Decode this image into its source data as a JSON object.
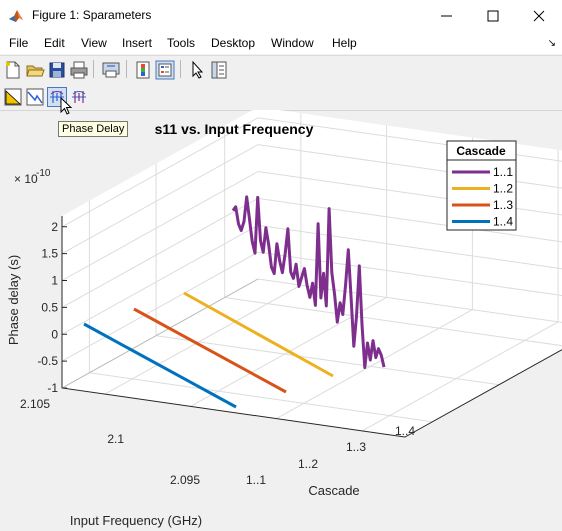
{
  "window": {
    "title": "Figure 1: Sparameters",
    "controls": [
      "minimize",
      "maximize",
      "close"
    ]
  },
  "menu": [
    "File",
    "Edit",
    "View",
    "Insert",
    "Tools",
    "Desktop",
    "Window",
    "Help"
  ],
  "toolbar": {
    "row1_icons": [
      "new-figure-icon",
      "open-file-icon",
      "save-icon",
      "print-icon",
      "print-preview-icon",
      "colorbar-icon",
      "legend-icon",
      "pointer-icon",
      "property-editor-icon"
    ],
    "row2_icons": [
      "magnitude-icon",
      "phase-icon",
      "phase-delay-icon",
      "group-delay-icon"
    ],
    "tooltip": "Phase Delay"
  },
  "chart_data": {
    "type": "line",
    "title": "s11 vs. Input Frequency",
    "xlabel": "Cascade",
    "ylabel": "Input Frequency (GHz)",
    "zlabel": "Phase delay (s)",
    "exponent": "10",
    "exponent_base": "× 10",
    "exponent_power": "-10",
    "x_ticks": [
      "1..1",
      "1..2",
      "1..3",
      "1..4"
    ],
    "y_ticks": [
      "2.095",
      "2.1",
      "2.105"
    ],
    "z_ticks": [
      "-1",
      "-0.5",
      "0",
      "0.5",
      "1",
      "1.5",
      "2"
    ],
    "zlim": [
      -1,
      2.2
    ],
    "grid": true,
    "legend": {
      "title": "Cascade",
      "position": "top-right",
      "entries": [
        {
          "name": "1..1",
          "color": "#7e2f8e"
        },
        {
          "name": "1..2",
          "color": "#edb120"
        },
        {
          "name": "1..3",
          "color": "#d95319"
        },
        {
          "name": "1..4",
          "color": "#0072bd"
        }
      ]
    },
    "series": [
      {
        "name": "1..1",
        "color": "#7e2f8e",
        "values": [
          1.2,
          1.3,
          1.0,
          0.9,
          1.1,
          1.6,
          1.2,
          0.8,
          0.6,
          1.7,
          0.9,
          0.7,
          1.2,
          0.9,
          0.5,
          0.4,
          1.0,
          0.7,
          0.5,
          0.9,
          1.4,
          0.6,
          0.5,
          0.8,
          0.4,
          0.6,
          0.8,
          0.5,
          0.3,
          0.6,
          0.2,
          1.8,
          0.4,
          0.9,
          0.3,
          2.2,
          1.0,
          0.6,
          0.1,
          0.5,
          0.3,
          0.9,
          1.6,
          0.7,
          -0.2,
          0.4,
          1.4,
          0.3,
          -0.5,
          0.0,
          -0.3,
          0.1,
          -0.2,
          0.0,
          -0.1,
          -0.3
        ]
      },
      {
        "name": "1..2",
        "color": "#edb120",
        "values": [
          0,
          0
        ]
      },
      {
        "name": "1..3",
        "color": "#d95319",
        "values": [
          0,
          0
        ]
      },
      {
        "name": "1..4",
        "color": "#0072bd",
        "values": [
          0,
          0
        ]
      }
    ]
  }
}
